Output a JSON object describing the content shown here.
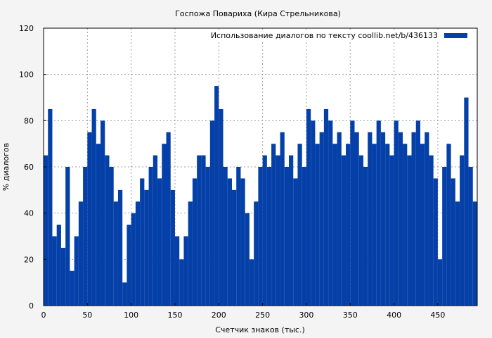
{
  "chart_data": {
    "type": "bar",
    "title": "Госпожа Повариха (Кира Стрельникова)",
    "xlabel": "Счетчик знаков (тыс.)",
    "ylabel": "% диалогов",
    "xlim": [
      0,
      495
    ],
    "ylim": [
      0,
      120
    ],
    "xticks": [
      0,
      50,
      100,
      150,
      200,
      250,
      300,
      350,
      400,
      450
    ],
    "yticks": [
      0,
      20,
      40,
      60,
      80,
      100,
      120
    ],
    "grid": true,
    "legend_position": "top-right",
    "bar_color": "#0540a8",
    "series": [
      {
        "name": "Использование диалогов по тексту  coollib.net/b/436133",
        "x": [
          0,
          5,
          10,
          15,
          20,
          25,
          30,
          35,
          40,
          45,
          50,
          55,
          60,
          65,
          70,
          75,
          80,
          85,
          90,
          95,
          100,
          105,
          110,
          115,
          120,
          125,
          130,
          135,
          140,
          145,
          150,
          155,
          160,
          165,
          170,
          175,
          180,
          185,
          190,
          195,
          200,
          205,
          210,
          215,
          220,
          225,
          230,
          235,
          240,
          245,
          250,
          255,
          260,
          265,
          270,
          275,
          280,
          285,
          290,
          295,
          300,
          305,
          310,
          315,
          320,
          325,
          330,
          335,
          340,
          345,
          350,
          355,
          360,
          365,
          370,
          375,
          380,
          385,
          390,
          395,
          400,
          405,
          410,
          415,
          420,
          425,
          430,
          435,
          440,
          445,
          450,
          455,
          460,
          465,
          470,
          475,
          480,
          485,
          490
        ],
        "values": [
          65,
          85,
          30,
          35,
          25,
          60,
          15,
          30,
          45,
          60,
          75,
          85,
          70,
          80,
          65,
          60,
          45,
          50,
          10,
          35,
          40,
          45,
          55,
          50,
          60,
          65,
          55,
          70,
          75,
          50,
          30,
          20,
          30,
          45,
          55,
          65,
          65,
          60,
          80,
          95,
          85,
          60,
          55,
          50,
          60,
          55,
          40,
          20,
          45,
          60,
          65,
          60,
          70,
          65,
          75,
          60,
          65,
          55,
          70,
          60,
          85,
          80,
          70,
          75,
          85,
          80,
          70,
          75,
          65,
          70,
          80,
          75,
          65,
          60,
          75,
          70,
          80,
          75,
          70,
          65,
          80,
          75,
          70,
          65,
          75,
          80,
          70,
          75,
          65,
          55,
          20,
          60,
          70,
          55,
          45,
          65,
          90,
          60,
          45
        ]
      }
    ]
  }
}
